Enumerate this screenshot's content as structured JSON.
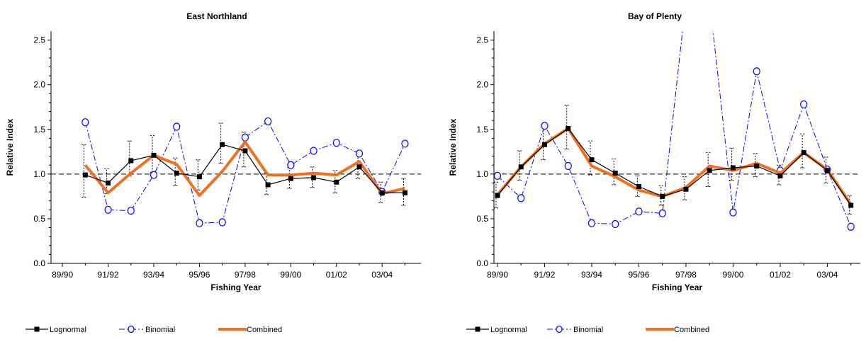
{
  "colors": {
    "lognormal": "#000000",
    "binomial": "#0000ff",
    "combined": "#f07020",
    "reference": "#000000"
  },
  "chart_data": [
    {
      "type": "line",
      "title": "East Northland",
      "xlabel": "Fishing Year",
      "ylabel": "Relative Index",
      "ylim": [
        0,
        2.6
      ],
      "yticks": [
        "0.0",
        "0.5",
        "1.0",
        "1.5",
        "2.0",
        "2.5"
      ],
      "xticks": [
        "89/90",
        "91/92",
        "93/94",
        "95/96",
        "97/98",
        "99/00",
        "01/02",
        "03/04"
      ],
      "reference_line": 1.0,
      "grid": false,
      "legend_position": "bottom",
      "x": [
        1,
        2,
        3,
        4,
        5,
        6,
        7,
        8,
        9,
        10,
        11,
        12,
        13,
        14,
        15
      ],
      "series": [
        {
          "name": "Lognormal",
          "values": [
            0.99,
            0.9,
            1.15,
            1.21,
            1.01,
            0.97,
            1.33,
            1.26,
            0.88,
            0.95,
            0.96,
            0.91,
            1.08,
            0.79,
            0.79
          ],
          "ci_lower": [
            0.74,
            0.78,
            0.98,
            1.02,
            0.87,
            0.82,
            1.12,
            1.08,
            0.77,
            0.84,
            0.85,
            0.79,
            0.95,
            0.68,
            0.65
          ],
          "ci_upper": [
            1.33,
            1.06,
            1.37,
            1.43,
            1.18,
            1.16,
            1.57,
            1.47,
            1.01,
            1.07,
            1.08,
            1.04,
            1.23,
            0.91,
            0.95
          ]
        },
        {
          "name": "Binomial",
          "values": [
            1.58,
            0.6,
            0.59,
            0.99,
            1.53,
            0.45,
            0.46,
            1.41,
            1.59,
            1.1,
            1.26,
            1.35,
            1.23,
            0.8,
            1.34
          ]
        },
        {
          "name": "Combined",
          "values": [
            1.1,
            0.79,
            1.01,
            1.21,
            1.11,
            0.76,
            1.03,
            1.36,
            0.99,
            0.99,
            1.01,
            0.99,
            1.14,
            0.78,
            0.84
          ]
        }
      ]
    },
    {
      "type": "line",
      "title": "Bay of Plenty",
      "xlabel": "Fishing Year",
      "ylabel": "Relative Index",
      "ylim": [
        0,
        2.6
      ],
      "yticks": [
        "0.0",
        "0.5",
        "1.0",
        "1.5",
        "2.0",
        "2.5"
      ],
      "xticks": [
        "89/90",
        "91/92",
        "93/94",
        "95/96",
        "97/98",
        "99/00",
        "01/02",
        "03/04"
      ],
      "reference_line": 1.0,
      "grid": false,
      "legend_position": "bottom",
      "x": [
        0,
        1,
        2,
        3,
        4,
        5,
        6,
        7,
        8,
        9,
        10,
        11,
        12,
        13,
        14,
        15
      ],
      "series": [
        {
          "name": "Lognormal",
          "values": [
            0.76,
            1.08,
            1.33,
            1.51,
            1.16,
            1.01,
            0.86,
            0.75,
            0.83,
            1.04,
            1.07,
            1.09,
            0.98,
            1.24,
            1.04,
            0.65
          ],
          "ci_lower": [
            0.62,
            0.93,
            1.16,
            1.28,
            0.99,
            0.88,
            0.75,
            0.65,
            0.71,
            0.86,
            0.93,
            0.97,
            0.88,
            1.07,
            0.9,
            0.55
          ],
          "ci_upper": [
            0.91,
            1.26,
            1.56,
            1.77,
            1.37,
            1.17,
            0.98,
            0.87,
            0.97,
            1.24,
            1.29,
            1.23,
            1.1,
            1.45,
            1.19,
            0.76
          ]
        },
        {
          "name": "Binomial",
          "values": [
            0.98,
            0.73,
            1.54,
            1.09,
            0.45,
            0.44,
            0.58,
            0.56,
            2.95,
            2.95,
            0.57,
            2.15,
            1.04,
            1.78,
            1.05,
            0.41
          ]
        },
        {
          "name": "Combined",
          "values": [
            0.77,
            1.08,
            1.34,
            1.51,
            1.09,
            0.97,
            0.82,
            0.75,
            0.85,
            1.09,
            1.04,
            1.12,
            1.01,
            1.24,
            1.05,
            0.66
          ]
        }
      ]
    }
  ]
}
